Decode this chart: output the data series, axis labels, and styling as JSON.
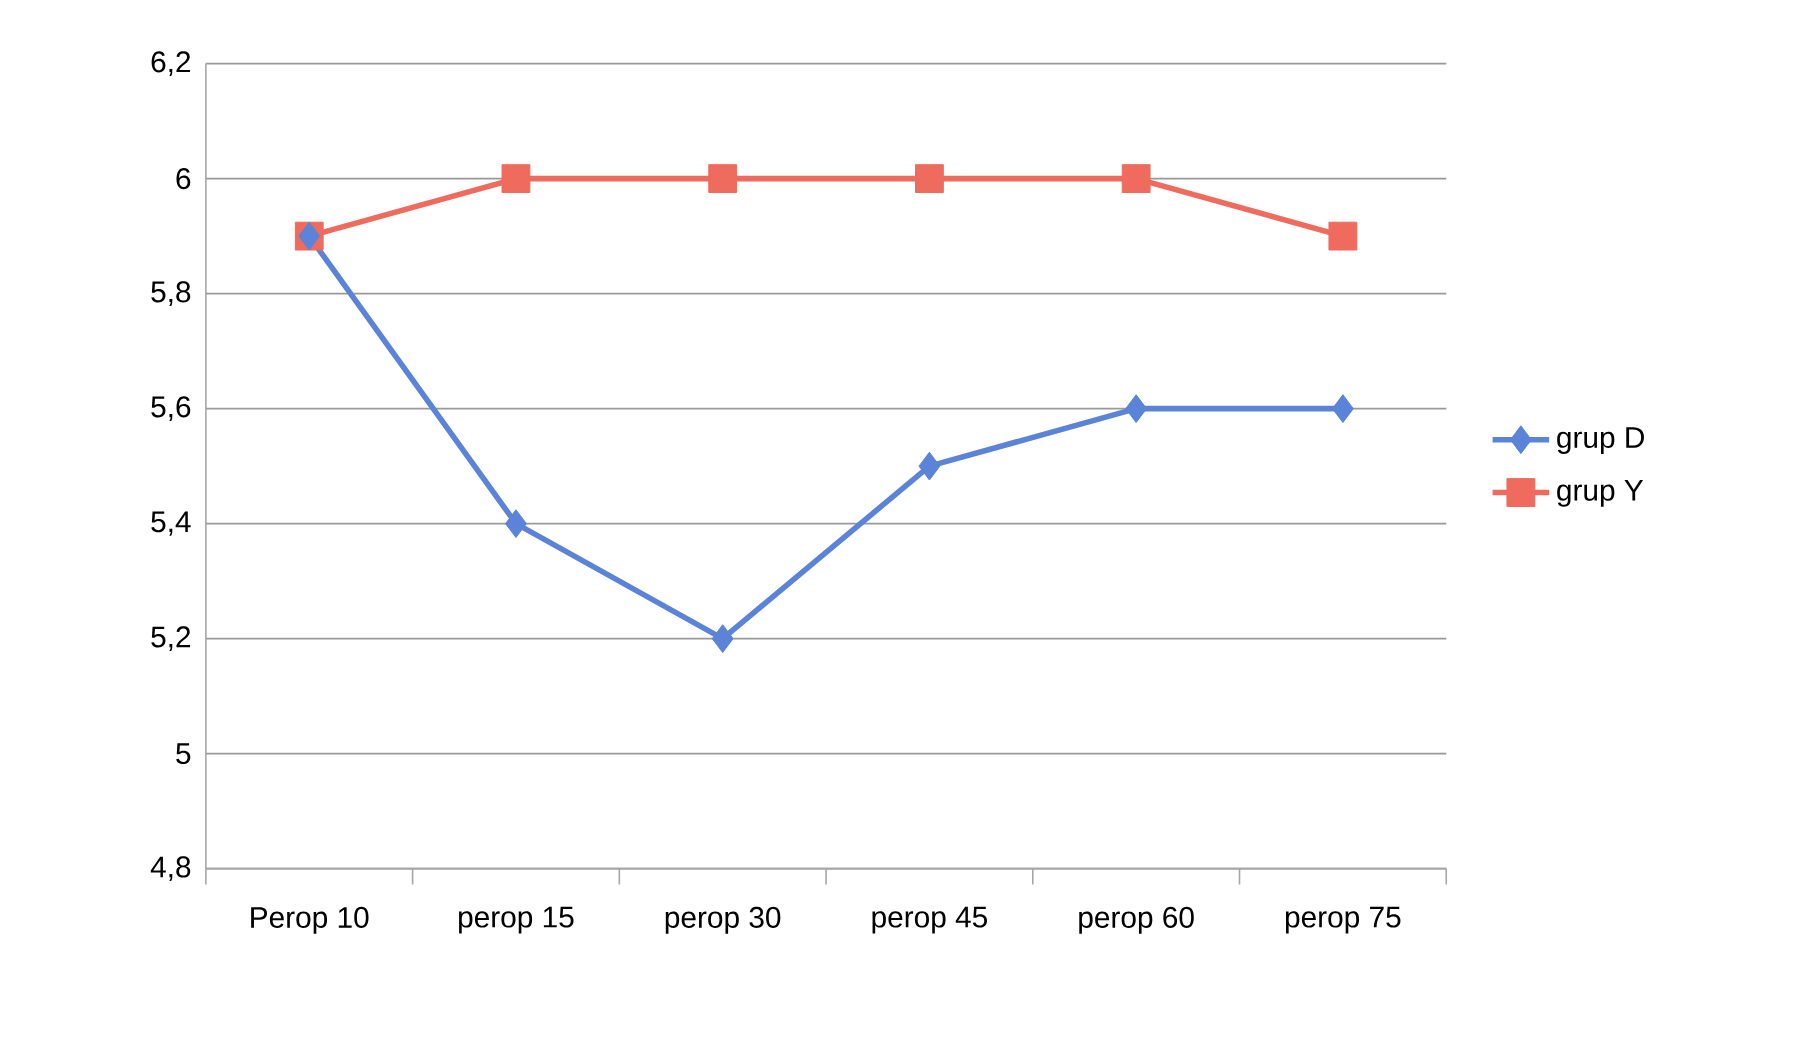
{
  "chart_data": {
    "type": "line",
    "categories": [
      "Perop 10",
      "perop 15",
      "perop 30",
      "perop 45",
      "perop 60",
      "perop 75"
    ],
    "series": [
      {
        "name": "grup D",
        "color": "#5b84d8",
        "marker": "diamond",
        "values": [
          5.9,
          5.4,
          5.2,
          5.5,
          5.6,
          5.6
        ]
      },
      {
        "name": "grup Y",
        "color": "#ee6b5e",
        "marker": "square",
        "values": [
          5.9,
          6,
          6,
          6,
          6,
          5.9
        ]
      }
    ],
    "ylim": [
      4.8,
      6.2
    ],
    "yticks": [
      {
        "value": 4.8,
        "label": "4,8"
      },
      5,
      {
        "value": 5.2,
        "label": "5,2"
      },
      {
        "value": 5.4,
        "label": "5,4"
      },
      {
        "value": 5.6,
        "label": "5,6"
      },
      {
        "value": 5.8,
        "label": "5,8"
      },
      6,
      {
        "value": 6.2,
        "label": "6,2"
      }
    ],
    "grid": "y",
    "legend": "right",
    "line_style": "solid"
  }
}
